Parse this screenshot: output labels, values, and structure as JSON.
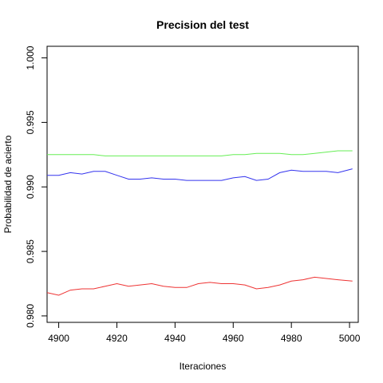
{
  "chart_data": {
    "type": "line",
    "title": "Precision del test",
    "xlabel": "Iteraciones",
    "ylabel": "Probabilidad de acierto",
    "xlim": [
      4896,
      5003
    ],
    "ylim": [
      0.9795,
      1.0009
    ],
    "x_ticks": [
      4900,
      4920,
      4940,
      4960,
      4980,
      5000
    ],
    "x_tick_labels": [
      "4900",
      "4920",
      "4940",
      "4960",
      "4980",
      "5000"
    ],
    "y_ticks": [
      0.98,
      0.985,
      0.99,
      0.995,
      1.0
    ],
    "y_tick_labels": [
      "0.980",
      "0.985",
      "0.990",
      "0.995",
      "1.000"
    ],
    "grid": false,
    "legend": "none",
    "x": [
      4896,
      4900,
      4904,
      4908,
      4912,
      4916,
      4920,
      4924,
      4928,
      4932,
      4936,
      4940,
      4944,
      4948,
      4952,
      4956,
      4960,
      4964,
      4968,
      4972,
      4976,
      4980,
      4984,
      4988,
      4992,
      4996,
      5001
    ],
    "series": [
      {
        "color": "#66ee55",
        "values": [
          0.9925,
          0.9925,
          0.9925,
          0.9925,
          0.9925,
          0.9924,
          0.9924,
          0.9924,
          0.9924,
          0.9924,
          0.9924,
          0.9924,
          0.9924,
          0.9924,
          0.9924,
          0.9924,
          0.9925,
          0.9925,
          0.9926,
          0.9926,
          0.9926,
          0.9925,
          0.9925,
          0.9926,
          0.9927,
          0.9928,
          0.9928
        ]
      },
      {
        "color": "#3333ee",
        "values": [
          0.9909,
          0.9909,
          0.9911,
          0.991,
          0.9912,
          0.9912,
          0.9909,
          0.9906,
          0.9906,
          0.9907,
          0.9906,
          0.9906,
          0.9905,
          0.9905,
          0.9905,
          0.9905,
          0.9907,
          0.9908,
          0.9905,
          0.9906,
          0.9911,
          0.9913,
          0.9912,
          0.9912,
          0.9912,
          0.9911,
          0.9914
        ]
      },
      {
        "color": "#ee3333",
        "values": [
          0.9818,
          0.9816,
          0.982,
          0.9821,
          0.9821,
          0.9823,
          0.9825,
          0.9823,
          0.9824,
          0.9825,
          0.9823,
          0.9822,
          0.9822,
          0.9825,
          0.9826,
          0.9825,
          0.9825,
          0.9824,
          0.9821,
          0.9822,
          0.9824,
          0.9827,
          0.9828,
          0.983,
          0.9829,
          0.9828,
          0.9827
        ]
      }
    ]
  }
}
